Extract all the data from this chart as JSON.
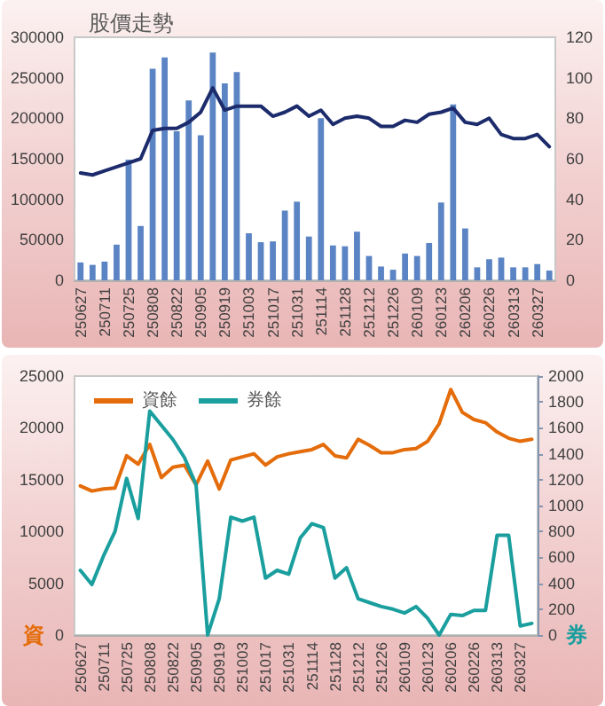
{
  "chart_data": [
    {
      "type": "bar",
      "title": "股價走勢",
      "categories": [
        "250627",
        null,
        "250711",
        null,
        "250725",
        null,
        "250808",
        null,
        "250822",
        null,
        "250905",
        null,
        "250919",
        null,
        "251003",
        null,
        "251017",
        null,
        "251031",
        null,
        "251114",
        null,
        "251128",
        null,
        "251212",
        null,
        "251226",
        null,
        "260109",
        null,
        "260123",
        null,
        "260206",
        null,
        "260226",
        null,
        "260313",
        null,
        "260327",
        null
      ],
      "series": [
        {
          "color": "#5b84c4",
          "values": [
            22000,
            19000,
            23000,
            44000,
            149000,
            67000,
            261000,
            275000,
            184000,
            222000,
            179000,
            281000,
            243000,
            257000,
            58000,
            47000,
            48000,
            86000,
            97000,
            54000,
            200000,
            43000,
            42000,
            60000,
            30000,
            17000,
            13000,
            33000,
            30000,
            46000,
            96000,
            217000,
            64000,
            16000,
            26000,
            28000,
            16000,
            16000,
            20000,
            12000
          ]
        },
        {
          "type": "line",
          "axis": "y2",
          "color": "#1c2b6b",
          "values": [
            53,
            52,
            54,
            56,
            58,
            60,
            74,
            75,
            75,
            78,
            83,
            95,
            84,
            86,
            86,
            86,
            81,
            83,
            86,
            81,
            84,
            77,
            80,
            81,
            80,
            76,
            76,
            79,
            78,
            82,
            83,
            85,
            78,
            77,
            80,
            72,
            70,
            70,
            72,
            66
          ]
        }
      ],
      "ylim": [
        0,
        300000
      ],
      "yticks": [
        0,
        50000,
        100000,
        150000,
        200000,
        250000,
        300000
      ],
      "y2lim": [
        0,
        120
      ],
      "y2ticks": [
        0,
        20,
        40,
        60,
        80,
        100,
        120
      ],
      "marker": "none"
    },
    {
      "type": "line",
      "ylabel": "資",
      "y2label": "券",
      "categories": [
        "250627",
        null,
        "250711",
        null,
        "250725",
        null,
        "250808",
        null,
        "250822",
        null,
        "250905",
        null,
        "250919",
        null,
        "251003",
        null,
        "251017",
        null,
        "251031",
        null,
        "251114",
        null,
        "251128",
        null,
        "251212",
        null,
        "251226",
        null,
        "260109",
        null,
        "260123",
        null,
        "260206",
        null,
        "260226",
        null,
        "260313",
        null,
        "260327",
        null
      ],
      "series": [
        {
          "name": "資餘",
          "color": "#e46c0a",
          "values": [
            14400,
            13900,
            14100,
            14200,
            17300,
            16500,
            18400,
            15200,
            16200,
            16400,
            14500,
            16800,
            14100,
            16900,
            17200,
            17500,
            16400,
            17200,
            17500,
            17700,
            17900,
            18400,
            17300,
            17100,
            18900,
            18300,
            17600,
            17600,
            17900,
            18000,
            18700,
            20400,
            23700,
            21500,
            20800,
            20500,
            19600,
            19000,
            18700,
            18900
          ]
        },
        {
          "name": "券餘",
          "color": "#1a9e9e",
          "axis": "y2",
          "values": [
            500,
            390,
            610,
            800,
            1210,
            900,
            1730,
            1620,
            1510,
            1370,
            1160,
            0,
            280,
            910,
            880,
            910,
            440,
            500,
            470,
            750,
            860,
            830,
            440,
            520,
            280,
            250,
            220,
            200,
            170,
            220,
            130,
            0,
            160,
            150,
            190,
            190,
            770,
            770,
            70,
            90
          ]
        }
      ],
      "ylim": [
        0,
        25000
      ],
      "yticks": [
        0,
        5000,
        10000,
        15000,
        20000,
        25000
      ],
      "y2lim": [
        0,
        2000
      ],
      "y2ticks": [
        0,
        200,
        400,
        600,
        800,
        1000,
        1200,
        1400,
        1600,
        1800,
        2000
      ],
      "legend": "top left",
      "marker": "none"
    }
  ]
}
